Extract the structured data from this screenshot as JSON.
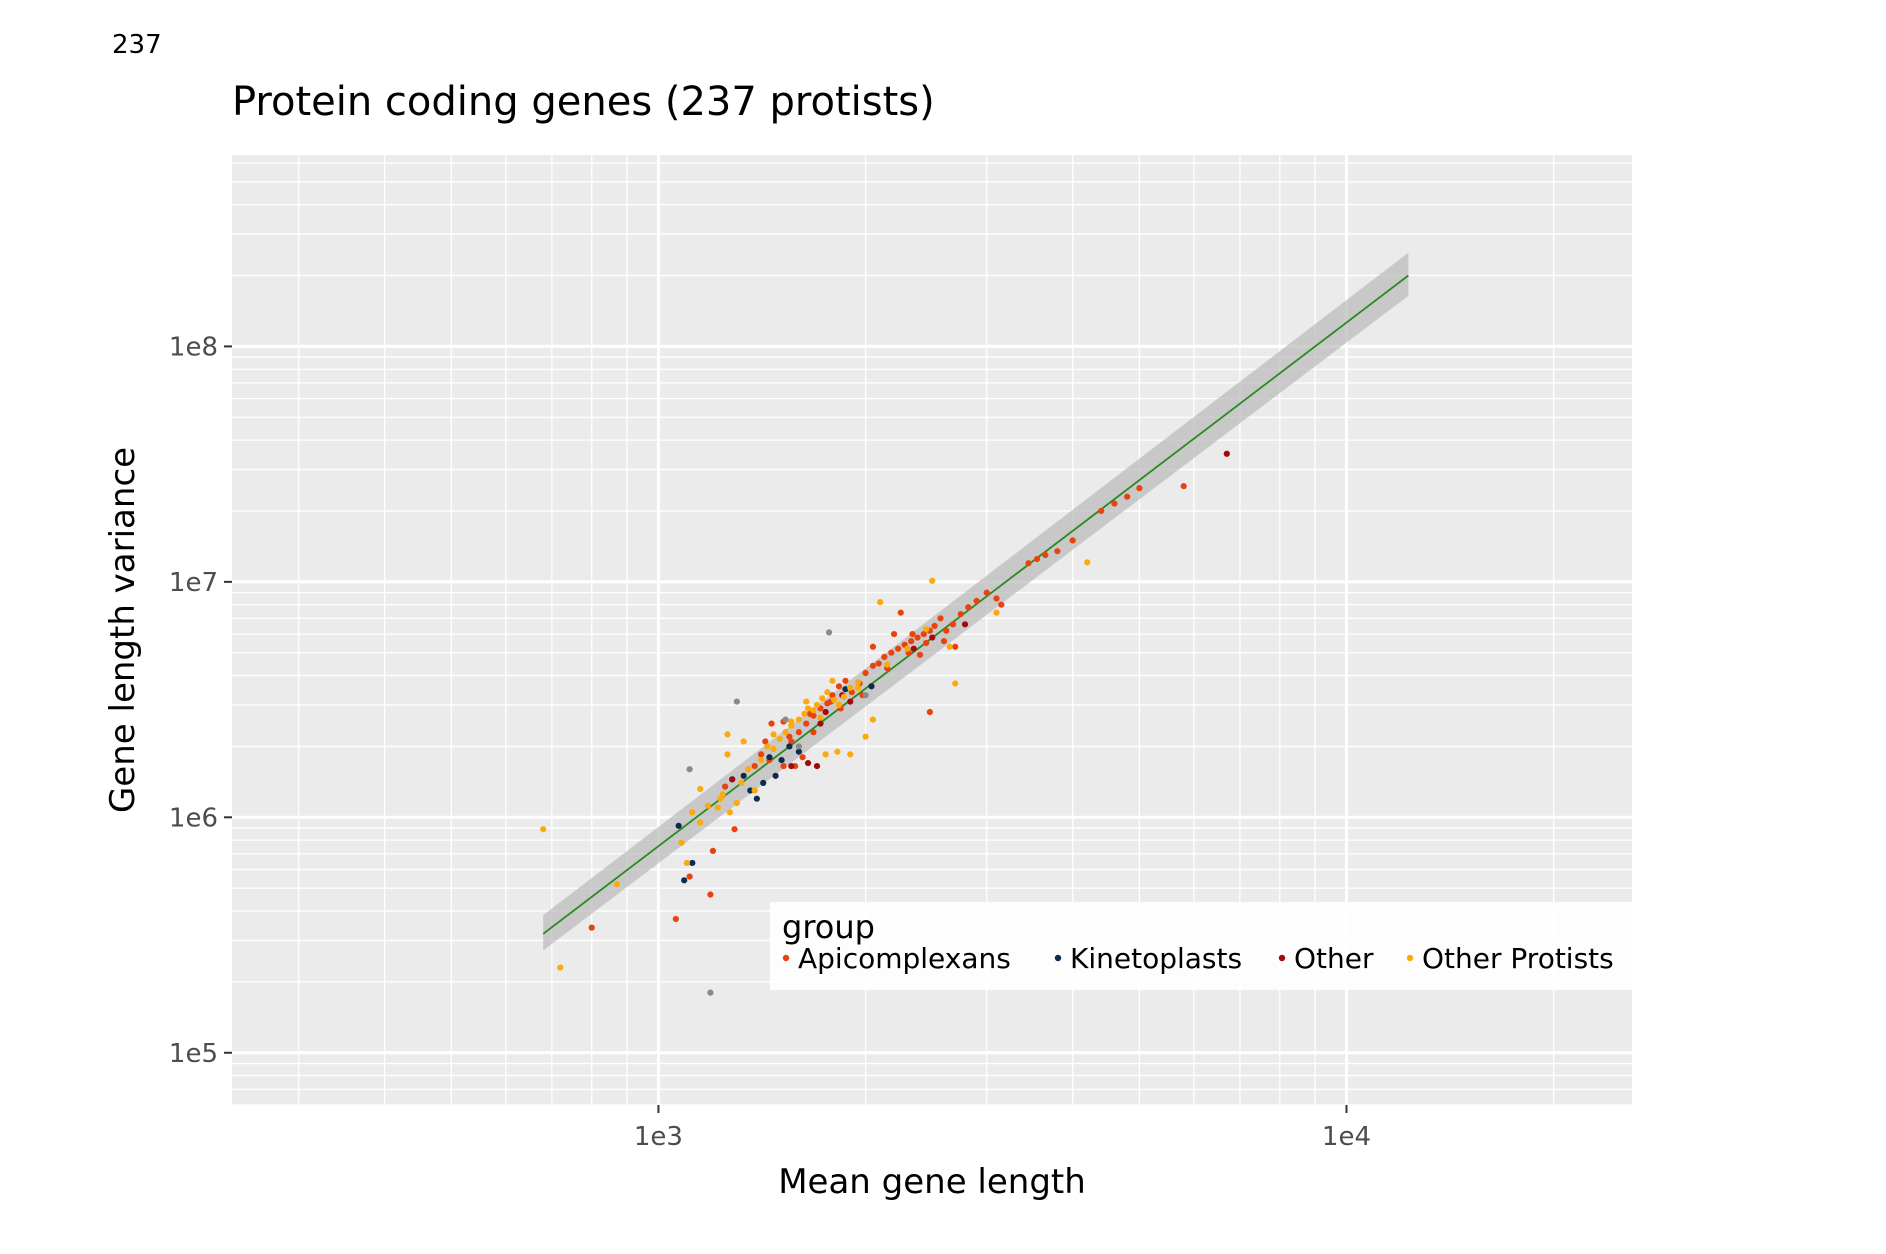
{
  "corner_text": "237",
  "chart_data": {
    "type": "scatter",
    "title": "Protein coding genes (237 protists)",
    "xlabel": "Mean gene length",
    "ylabel": "Gene length variance",
    "x_scale": "log10",
    "y_scale": "log10",
    "xlim": [
      240,
      26000
    ],
    "ylim": [
      60000,
      650000000
    ],
    "x_ticks": [
      {
        "value": 1000,
        "label": "1e3"
      },
      {
        "value": 10000,
        "label": "1e4"
      }
    ],
    "y_ticks": [
      {
        "value": 100000,
        "label": "1e5"
      },
      {
        "value": 1000000,
        "label": "1e6"
      },
      {
        "value": 10000000,
        "label": "1e7"
      },
      {
        "value": 100000000,
        "label": "1e8"
      }
    ],
    "grid": true,
    "panel_background": "#ebebeb",
    "legend": {
      "title": "group",
      "placement": "inside-bottom-right",
      "entries": [
        {
          "label": "Apicomplexans",
          "color": "#e8430f"
        },
        {
          "label": "Kinetoplasts",
          "color": "#0d2b50"
        },
        {
          "label": "Other",
          "color": "#a10a0a"
        },
        {
          "label": "Other Protists",
          "color": "#fba90b"
        }
      ]
    },
    "unlabeled_color": "#8a8a8a",
    "fit": {
      "kind": "linear regression on log-log scale",
      "color": "#2a8a1f",
      "band_color": "#b9b9b9",
      "start": [
        680,
        320000
      ],
      "end": [
        12300,
        200000000
      ],
      "band_rel_low_start": 0.85,
      "band_rel_high_start": 1.2,
      "band_rel_low_end": 0.82,
      "band_rel_high_end": 1.25
    },
    "series": [
      {
        "name": "Apicomplexans",
        "color": "#e8430f",
        "points": [
          [
            800,
            340000
          ],
          [
            1060,
            370000
          ],
          [
            1110,
            560000
          ],
          [
            1200,
            720000
          ],
          [
            1190,
            470000
          ],
          [
            1290,
            890000
          ],
          [
            1430,
            2100000
          ],
          [
            1460,
            2500000
          ],
          [
            1520,
            1650000
          ],
          [
            1560,
            2100000
          ],
          [
            1600,
            2300000
          ],
          [
            1640,
            2500000
          ],
          [
            1680,
            2700000
          ],
          [
            1720,
            2900000
          ],
          [
            1760,
            3050000
          ],
          [
            1790,
            3300000
          ],
          [
            1830,
            3600000
          ],
          [
            1870,
            3800000
          ],
          [
            1910,
            3400000
          ],
          [
            1960,
            3700000
          ],
          [
            2000,
            4100000
          ],
          [
            2050,
            4400000
          ],
          [
            2090,
            4500000
          ],
          [
            2130,
            4800000
          ],
          [
            2180,
            5000000
          ],
          [
            2230,
            5200000
          ],
          [
            2280,
            5400000
          ],
          [
            2330,
            5600000
          ],
          [
            2380,
            5800000
          ],
          [
            2430,
            6000000
          ],
          [
            2480,
            6200000
          ],
          [
            2520,
            6500000
          ],
          [
            2570,
            7000000
          ],
          [
            2620,
            6200000
          ],
          [
            2680,
            6600000
          ],
          [
            2750,
            7300000
          ],
          [
            2820,
            7800000
          ],
          [
            2900,
            8300000
          ],
          [
            3000,
            9000000
          ],
          [
            3150,
            8000000
          ],
          [
            3450,
            12000000
          ],
          [
            3550,
            12500000
          ],
          [
            3650,
            13000000
          ],
          [
            3800,
            13500000
          ],
          [
            4000,
            15000000
          ],
          [
            4400,
            20000000
          ],
          [
            4600,
            21500000
          ],
          [
            4800,
            23000000
          ],
          [
            5000,
            25000000
          ],
          [
            5800,
            25500000
          ],
          [
            2200,
            6000000
          ],
          [
            2310,
            5000000
          ],
          [
            2450,
            5500000
          ],
          [
            2150,
            4300000
          ],
          [
            1840,
            2900000
          ],
          [
            1780,
            3100000
          ],
          [
            1680,
            2300000
          ],
          [
            1410,
            1850000
          ],
          [
            1380,
            1650000
          ],
          [
            1250,
            1350000
          ],
          [
            1450,
            1750000
          ],
          [
            1550,
            2200000
          ],
          [
            1620,
            1800000
          ],
          [
            1580,
            1650000
          ],
          [
            2050,
            5300000
          ],
          [
            2250,
            7400000
          ],
          [
            2480,
            2800000
          ],
          [
            3100,
            8500000
          ],
          [
            2340,
            6000000
          ],
          [
            2600,
            5600000
          ],
          [
            1520,
            2550000
          ],
          [
            1660,
            2750000
          ],
          [
            1980,
            3300000
          ],
          [
            2400,
            4900000
          ],
          [
            2700,
            5300000
          ]
        ]
      },
      {
        "name": "Kinetoplasts",
        "color": "#0d2b50",
        "points": [
          [
            1070,
            920000
          ],
          [
            1090,
            540000
          ],
          [
            1120,
            640000
          ],
          [
            1280,
            1450000
          ],
          [
            1330,
            1500000
          ],
          [
            1390,
            1200000
          ],
          [
            1420,
            1400000
          ],
          [
            1480,
            1500000
          ],
          [
            1510,
            1750000
          ],
          [
            1550,
            2000000
          ],
          [
            1600,
            1900000
          ],
          [
            1870,
            3500000
          ],
          [
            2040,
            3600000
          ],
          [
            1450,
            1800000
          ],
          [
            1360,
            1300000
          ]
        ]
      },
      {
        "name": "Other",
        "color": "#a10a0a",
        "points": [
          [
            1280,
            1450000
          ],
          [
            1650,
            1700000
          ],
          [
            1720,
            2500000
          ],
          [
            1850,
            3300000
          ],
          [
            2500,
            5800000
          ],
          [
            2790,
            6600000
          ],
          [
            6700,
            35000000
          ],
          [
            1700,
            1650000
          ],
          [
            2350,
            5200000
          ],
          [
            1560,
            1650000
          ],
          [
            1750,
            2800000
          ],
          [
            1900,
            3100000
          ]
        ]
      },
      {
        "name": "Other Protists",
        "color": "#fba90b",
        "points": [
          [
            680,
            890000
          ],
          [
            720,
            230000
          ],
          [
            870,
            520000
          ],
          [
            1080,
            780000
          ],
          [
            1100,
            640000
          ],
          [
            1120,
            1050000
          ],
          [
            1150,
            950000
          ],
          [
            1180,
            1120000
          ],
          [
            1220,
            1100000
          ],
          [
            1240,
            1250000
          ],
          [
            1260,
            1850000
          ],
          [
            1270,
            1050000
          ],
          [
            1300,
            1150000
          ],
          [
            1320,
            1400000
          ],
          [
            1350,
            1600000
          ],
          [
            1380,
            1300000
          ],
          [
            1410,
            1750000
          ],
          [
            1440,
            2000000
          ],
          [
            1470,
            2250000
          ],
          [
            1500,
            2150000
          ],
          [
            1530,
            2300000
          ],
          [
            1560,
            2450000
          ],
          [
            1600,
            2600000
          ],
          [
            1630,
            2750000
          ],
          [
            1650,
            2900000
          ],
          [
            1700,
            3000000
          ],
          [
            1730,
            3200000
          ],
          [
            1760,
            3400000
          ],
          [
            1800,
            3150000
          ],
          [
            1830,
            3000000
          ],
          [
            1860,
            3250000
          ],
          [
            1900,
            3550000
          ],
          [
            1950,
            3750000
          ],
          [
            1750,
            1850000
          ],
          [
            1820,
            1900000
          ],
          [
            1900,
            1850000
          ],
          [
            2050,
            2600000
          ],
          [
            2150,
            4450000
          ],
          [
            2300,
            5200000
          ],
          [
            2450,
            6300000
          ],
          [
            2500,
            10100000
          ],
          [
            2650,
            5300000
          ],
          [
            2700,
            3700000
          ],
          [
            3100,
            7400000
          ],
          [
            4200,
            12100000
          ],
          [
            2100,
            8200000
          ],
          [
            1260,
            2250000
          ],
          [
            1330,
            2100000
          ],
          [
            1640,
            3100000
          ],
          [
            1790,
            3800000
          ],
          [
            1720,
            2650000
          ],
          [
            1560,
            2550000
          ],
          [
            1470,
            1950000
          ],
          [
            1230,
            1200000
          ],
          [
            1150,
            1320000
          ],
          [
            1950,
            3550000
          ],
          [
            2000,
            2200000
          ],
          [
            1680,
            2850000
          ]
        ]
      },
      {
        "name": "",
        "color": "#8a8a8a",
        "points": [
          [
            1110,
            1600000
          ],
          [
            1190,
            180000
          ],
          [
            1300,
            3100000
          ],
          [
            1530,
            2600000
          ],
          [
            1770,
            6100000
          ],
          [
            1600,
            2000000
          ],
          [
            2000,
            3300000
          ]
        ]
      }
    ]
  }
}
